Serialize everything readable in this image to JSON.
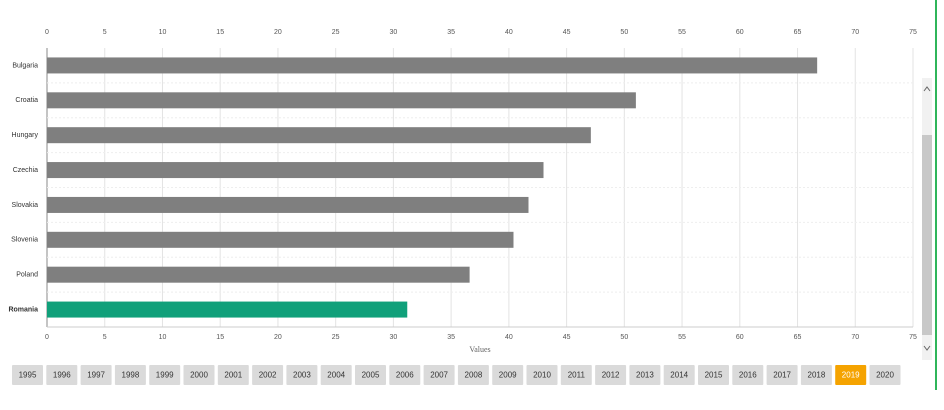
{
  "chart_data": {
    "type": "bar",
    "orientation": "horizontal",
    "categories": [
      "Bulgaria",
      "Croatia",
      "Hungary",
      "Czechia",
      "Slovakia",
      "Slovenia",
      "Poland",
      "Romania"
    ],
    "values": [
      66.7,
      51.0,
      47.1,
      43.0,
      41.7,
      40.4,
      36.6,
      31.2
    ],
    "color": "#7f7f7f",
    "highlight": {
      "index": 7,
      "color": "#10a07a"
    },
    "xlim": [
      0,
      75
    ],
    "xticks": [
      0,
      5,
      10,
      15,
      20,
      25,
      30,
      35,
      40,
      45,
      50,
      55,
      60,
      65,
      70,
      75
    ],
    "xlabel": "Values",
    "grid": true
  },
  "years": {
    "labels": [
      "1995",
      "1996",
      "1997",
      "1998",
      "1999",
      "2000",
      "2001",
      "2002",
      "2003",
      "2004",
      "2005",
      "2006",
      "2007",
      "2008",
      "2009",
      "2010",
      "2011",
      "2012",
      "2013",
      "2014",
      "2015",
      "2016",
      "2017",
      "2018",
      "2019",
      "2020"
    ],
    "selected_index": 24,
    "selected_color": "#f5a300"
  }
}
